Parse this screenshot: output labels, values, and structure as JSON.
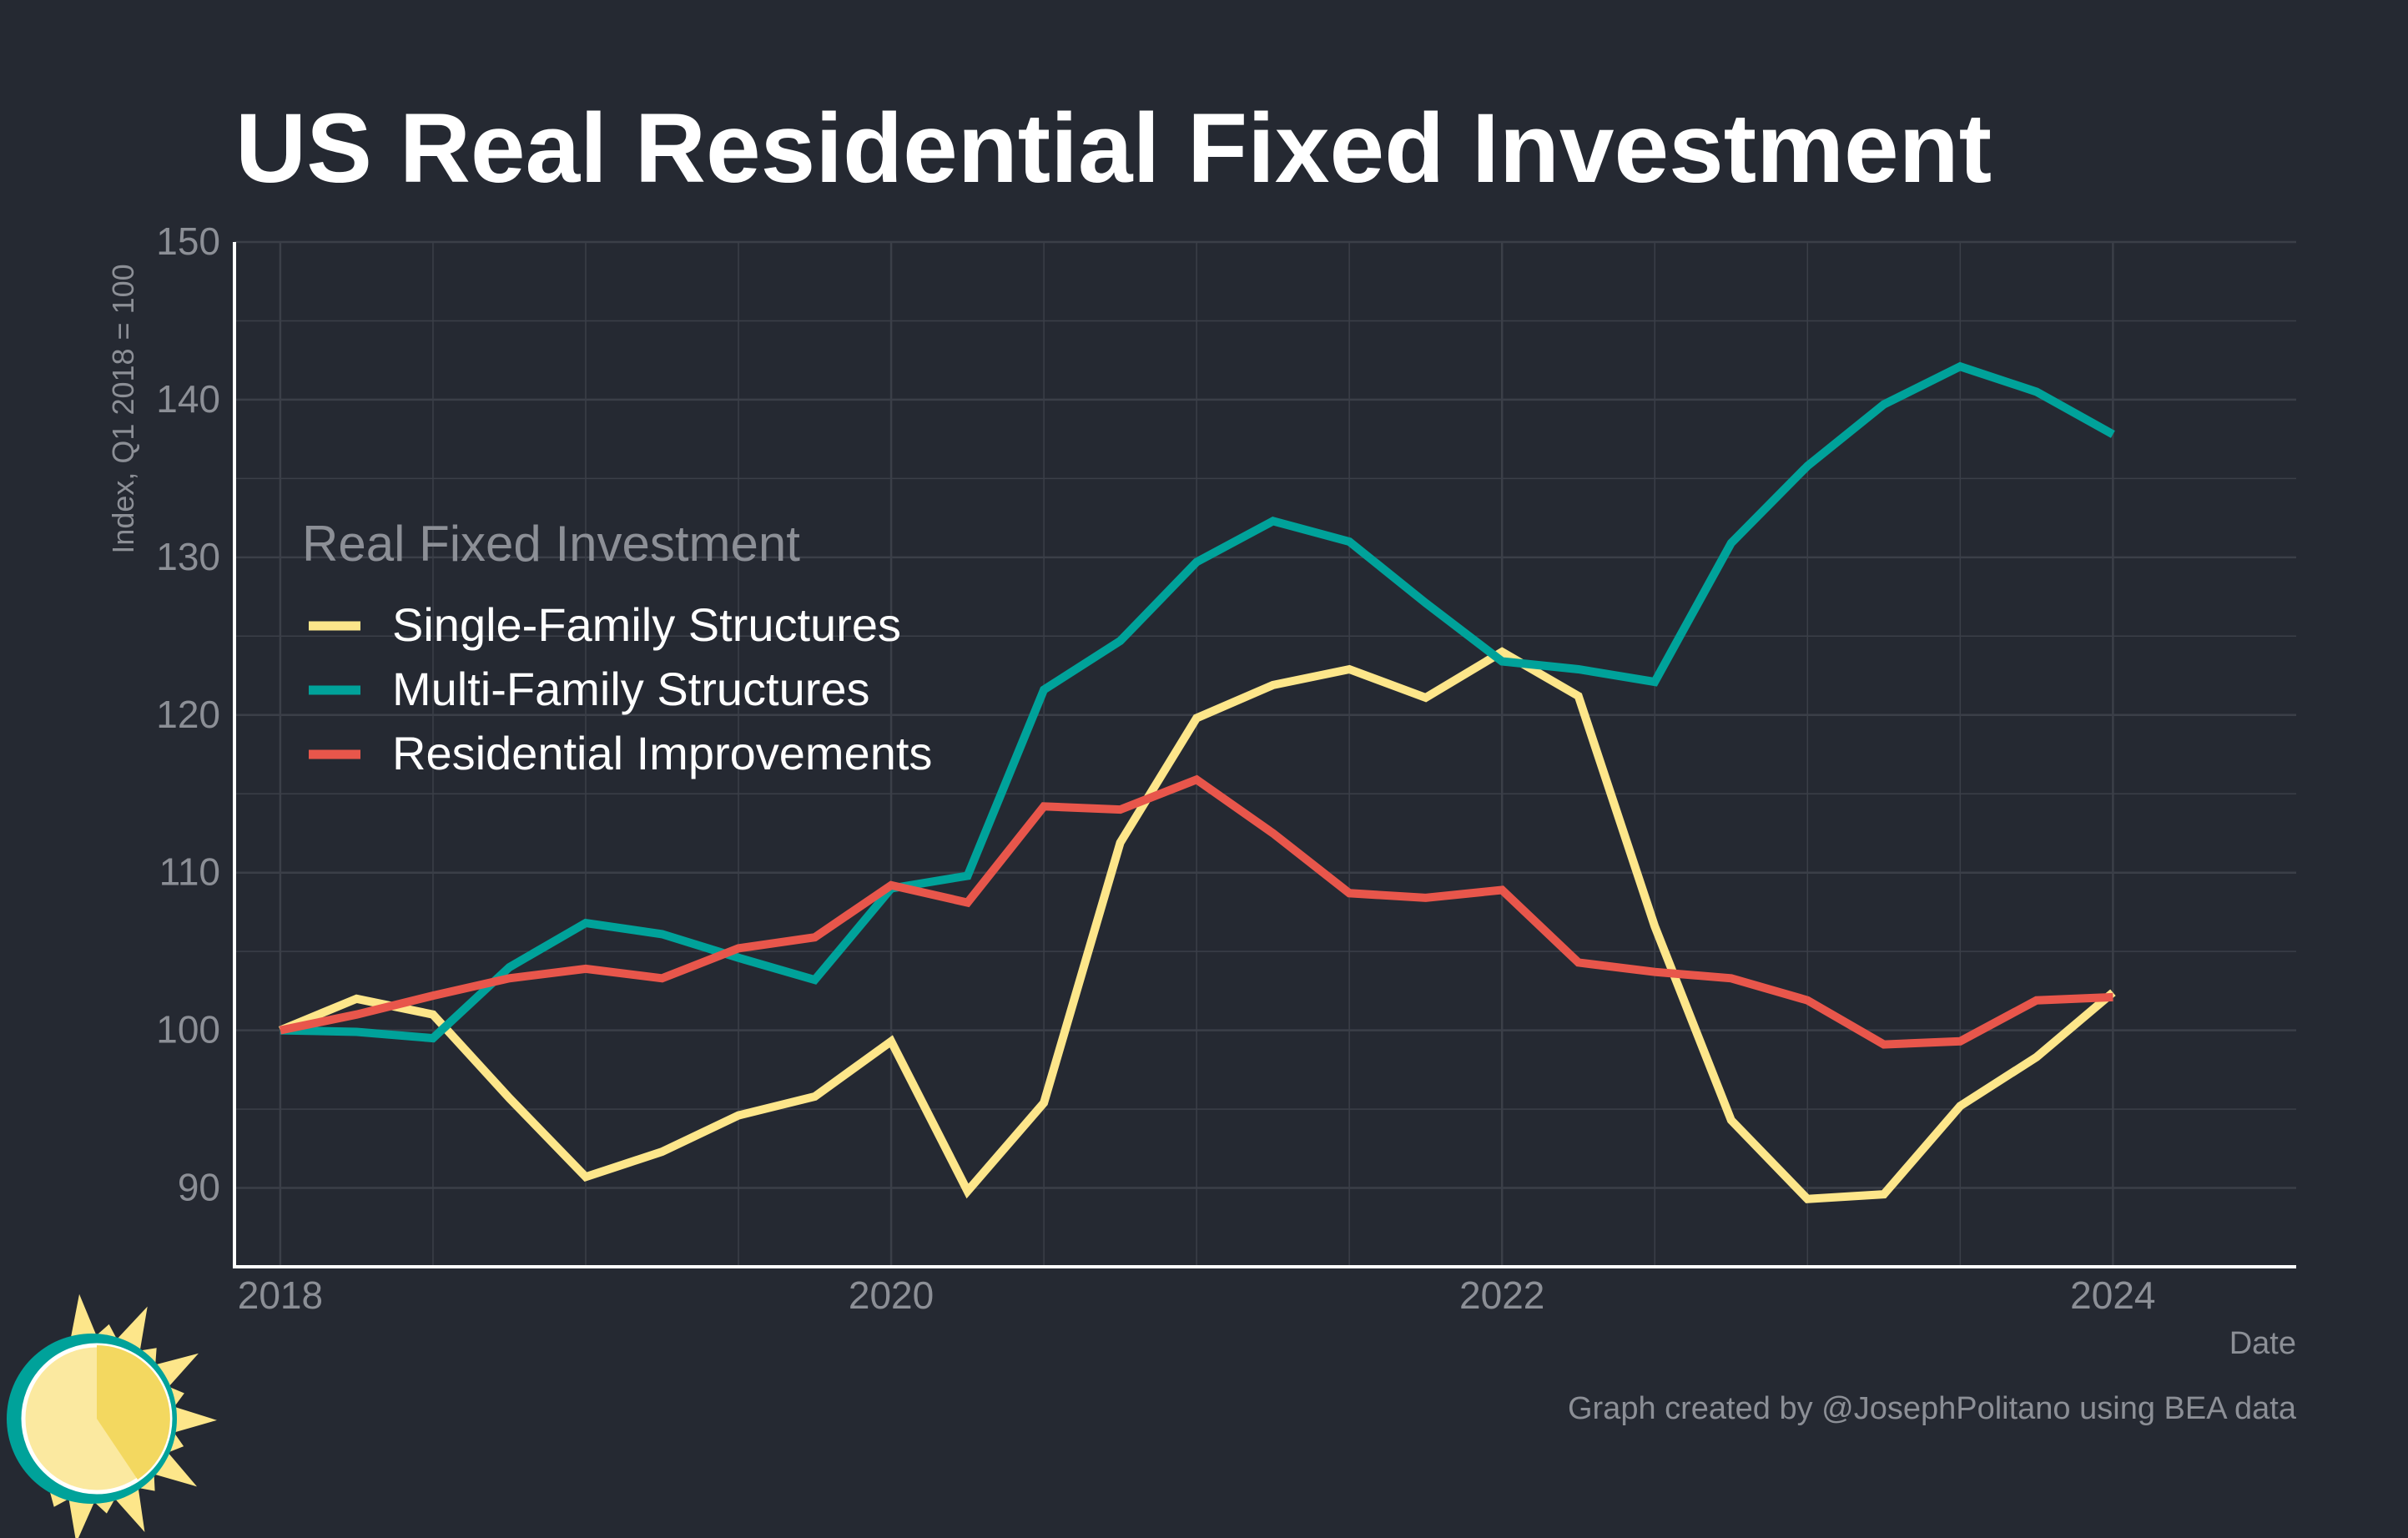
{
  "colors": {
    "background": "#252932",
    "grid": "#3b3f48",
    "axis": "#ffffff",
    "text_muted": "#8c8f96",
    "single_family": "#fde68a",
    "multi_family": "#00a29a",
    "improvements": "#e8564b",
    "logo_sun": "#fde68a",
    "logo_ring": "#00a29a"
  },
  "chart_data": {
    "type": "line",
    "title": "US Real Residential Fixed Investment",
    "ylabel": "Index, Q1 2018 = 100",
    "xlabel": "Date",
    "ylim": [
      85,
      150
    ],
    "xlim": [
      2017.85,
      2024.6
    ],
    "y_ticks": [
      90,
      100,
      110,
      120,
      130,
      140,
      150
    ],
    "x_ticks": [
      {
        "value": 2018,
        "label": "2018"
      },
      {
        "value": 2020,
        "label": "2020"
      },
      {
        "value": 2022,
        "label": "2022"
      },
      {
        "value": 2024,
        "label": "2024"
      }
    ],
    "grid": true,
    "legend_title": "Real Fixed Investment",
    "legend_position": "top-left",
    "x": [
      "2018-Q1",
      "2018-Q2",
      "2018-Q3",
      "2018-Q4",
      "2019-Q1",
      "2019-Q2",
      "2019-Q3",
      "2019-Q4",
      "2020-Q1",
      "2020-Q2",
      "2020-Q3",
      "2020-Q4",
      "2021-Q1",
      "2021-Q2",
      "2021-Q3",
      "2021-Q4",
      "2022-Q1",
      "2022-Q2",
      "2022-Q3",
      "2022-Q4",
      "2023-Q1",
      "2023-Q2",
      "2023-Q3",
      "2023-Q4",
      "2024-Q1"
    ],
    "series": [
      {
        "name": "Single-Family Structures",
        "color": "#fde68a",
        "values": [
          100,
          102.0,
          101.0,
          95.7,
          90.7,
          92.3,
          94.6,
          95.8,
          99.3,
          89.8,
          95.4,
          111.9,
          119.8,
          121.9,
          122.9,
          121.1,
          124.0,
          121.2,
          106.6,
          94.3,
          89.3,
          89.6,
          95.2,
          98.3,
          102.4
        ]
      },
      {
        "name": "Multi-Family Structures",
        "color": "#00a29a",
        "values": [
          100,
          99.9,
          99.5,
          104.0,
          106.8,
          106.1,
          104.6,
          103.2,
          109.0,
          109.8,
          121.6,
          124.7,
          129.7,
          132.3,
          131.0,
          127.1,
          123.4,
          122.9,
          122.1,
          130.9,
          135.8,
          139.7,
          142.1,
          140.5,
          137.8
        ]
      },
      {
        "name": "Residential Improvements",
        "color": "#e8564b",
        "values": [
          100,
          101.0,
          102.2,
          103.3,
          103.9,
          103.3,
          105.2,
          105.9,
          109.2,
          108.1,
          114.2,
          114.0,
          115.9,
          112.5,
          108.7,
          108.4,
          108.9,
          104.3,
          103.7,
          103.3,
          101.9,
          99.1,
          99.3,
          101.9,
          102.1
        ]
      }
    ],
    "credit": "Graph created by @JosephPolitano using BEA data"
  }
}
